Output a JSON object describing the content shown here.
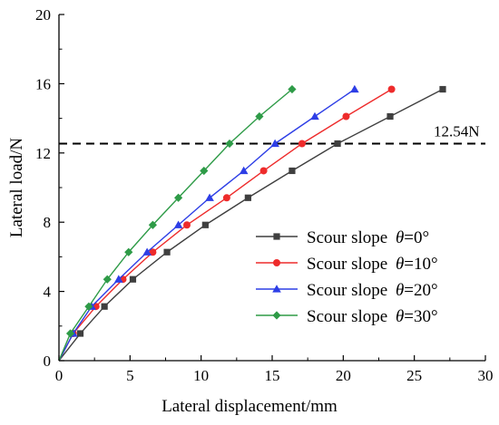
{
  "chart_data": {
    "type": "line",
    "title": "",
    "xlabel": "Lateral displacement/mm",
    "ylabel": "Lateral load/N",
    "xlim": [
      0,
      30
    ],
    "ylim": [
      0,
      20
    ],
    "x_ticks": [
      0,
      5,
      10,
      15,
      20,
      25,
      30
    ],
    "y_ticks": [
      0,
      4,
      8,
      12,
      16,
      20
    ],
    "grid": false,
    "legend_position": "lower-right",
    "reference_line": {
      "y": 12.54,
      "label": "12.54N",
      "style": "dashed",
      "color": "#000000"
    },
    "series": [
      {
        "name": "Scour slope θ=0°",
        "name_prefix": "Scour slope ",
        "name_theta": "θ",
        "name_suffix": "=0°",
        "color": "#3f3f3f",
        "marker": "square",
        "x": [
          0,
          1.5,
          3.2,
          5.2,
          7.6,
          10.3,
          13.3,
          16.4,
          19.6,
          23.3,
          27.0
        ],
        "y": [
          0,
          1.57,
          3.13,
          4.7,
          6.27,
          7.84,
          9.41,
          10.97,
          12.54,
          14.11,
          15.68
        ]
      },
      {
        "name": "Scour slope θ=10°",
        "name_prefix": "Scour slope ",
        "name_theta": "θ",
        "name_suffix": "=10°",
        "color": "#ee2b2b",
        "marker": "circle",
        "x": [
          0,
          1.0,
          2.6,
          4.5,
          6.6,
          9.0,
          11.8,
          14.4,
          17.1,
          20.2,
          23.4
        ],
        "y": [
          0,
          1.57,
          3.13,
          4.7,
          6.27,
          7.84,
          9.41,
          10.97,
          12.54,
          14.11,
          15.68
        ]
      },
      {
        "name": "Scour slope θ=20°",
        "name_prefix": "Scour slope ",
        "name_theta": "θ",
        "name_suffix": "=20°",
        "color": "#2d3ee6",
        "marker": "triangle",
        "x": [
          0,
          1.0,
          2.3,
          4.2,
          6.2,
          8.4,
          10.6,
          13.0,
          15.2,
          18.0,
          20.8
        ],
        "y": [
          0,
          1.57,
          3.13,
          4.7,
          6.27,
          7.84,
          9.41,
          10.97,
          12.54,
          14.11,
          15.68
        ]
      },
      {
        "name": "Scour slope θ=30°",
        "name_prefix": "Scour slope ",
        "name_theta": "θ",
        "name_suffix": "=30°",
        "color": "#2e9b47",
        "marker": "diamond",
        "x": [
          0,
          0.8,
          2.1,
          3.4,
          4.9,
          6.6,
          8.4,
          10.2,
          12.0,
          14.1,
          16.4
        ],
        "y": [
          0,
          1.57,
          3.13,
          4.7,
          6.27,
          7.84,
          9.41,
          10.97,
          12.54,
          14.11,
          15.68
        ]
      }
    ]
  }
}
